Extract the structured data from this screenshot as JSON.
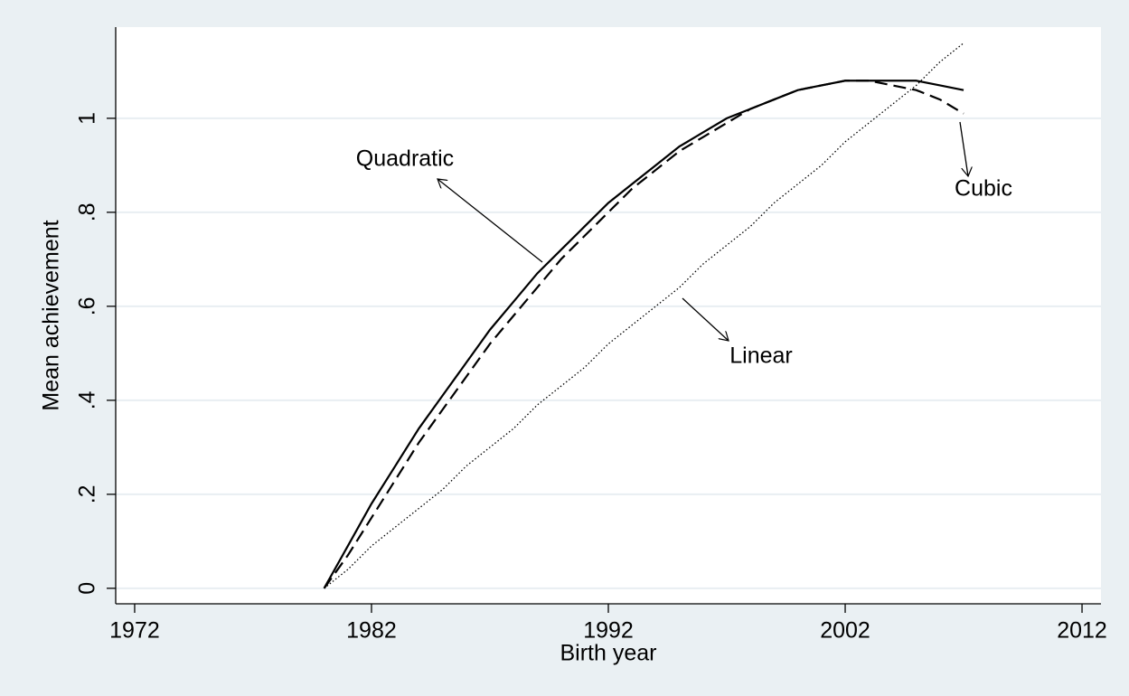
{
  "chart_data": {
    "type": "line",
    "x_label": "Birth year",
    "y_label": "Mean achievement",
    "x": [
      1980,
      1981,
      1982,
      1983,
      1984,
      1985,
      1986,
      1987,
      1988,
      1989,
      1990,
      1991,
      1992,
      1993,
      1994,
      1995,
      1996,
      1997,
      1998,
      1999,
      2000,
      2001,
      2002,
      2003,
      2004,
      2005,
      2006,
      2007
    ],
    "series": [
      {
        "name": "Quadratic",
        "color": "#000000",
        "dash": "solid",
        "values": [
          0,
          0.09,
          0.18,
          0.26,
          0.34,
          0.41,
          0.48,
          0.55,
          0.61,
          0.67,
          0.72,
          0.77,
          0.82,
          0.86,
          0.9,
          0.94,
          0.97,
          1.0,
          1.02,
          1.04,
          1.06,
          1.07,
          1.08,
          1.08,
          1.08,
          1.08,
          1.07,
          1.06
        ]
      },
      {
        "name": "Cubic",
        "color": "#000000",
        "dash": "dashed",
        "values": [
          0,
          0.07,
          0.15,
          0.23,
          0.31,
          0.38,
          0.45,
          0.52,
          0.58,
          0.64,
          0.7,
          0.75,
          0.8,
          0.85,
          0.89,
          0.93,
          0.96,
          0.99,
          1.02,
          1.04,
          1.06,
          1.07,
          1.08,
          1.08,
          1.07,
          1.06,
          1.04,
          1.01
        ]
      },
      {
        "name": "Linear",
        "color": "#000000",
        "dash": "dotted",
        "values": [
          0,
          0.04,
          0.09,
          0.13,
          0.17,
          0.21,
          0.26,
          0.3,
          0.34,
          0.39,
          0.43,
          0.47,
          0.52,
          0.56,
          0.6,
          0.64,
          0.69,
          0.73,
          0.77,
          0.82,
          0.86,
          0.9,
          0.95,
          0.99,
          1.03,
          1.07,
          1.12,
          1.16
        ]
      }
    ],
    "xlim": [
      1971.2,
      2012.8
    ],
    "xticks": [
      1972,
      1982,
      1992,
      2002,
      2012
    ],
    "ylim": [
      -0.033,
      1.194
    ],
    "yticks": [
      0,
      {
        "value": 0.2,
        "label": ".2"
      },
      {
        "value": 0.4,
        "label": ".4"
      },
      {
        "value": 0.6,
        "label": ".6"
      },
      {
        "value": 0.8,
        "label": ".8"
      },
      1
    ],
    "grid": true,
    "annotations": [
      "Quadratic",
      "Linear",
      "Cubic"
    ]
  }
}
